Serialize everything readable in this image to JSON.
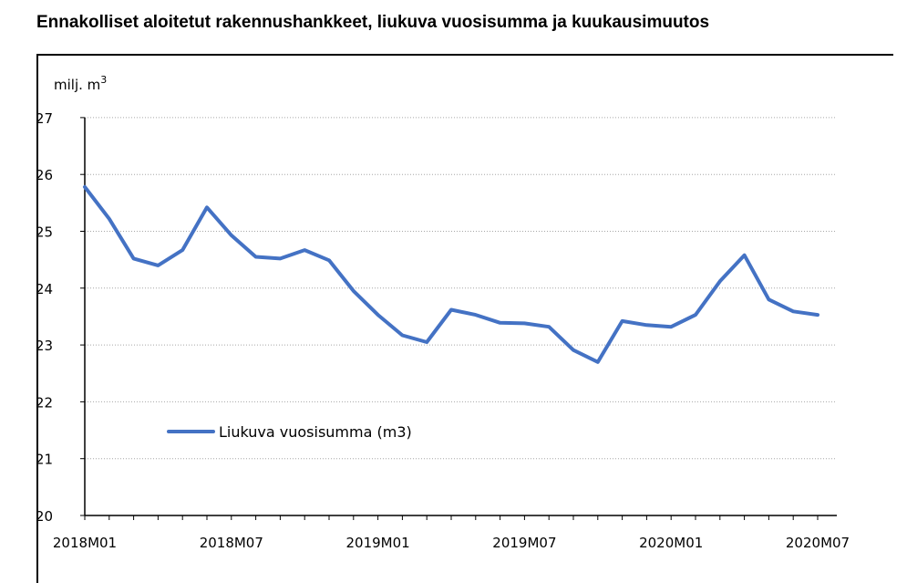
{
  "title": "Ennakolliset aloitetut rakennushankkeet, liukuva vuosisumma ja kuukausimuutos",
  "chart_data": {
    "type": "line",
    "title": "Ennakolliset aloitetut rakennushankkeet, liukuva vuosisumma ja kuukausimuutos",
    "ylabel_base": "milj. m",
    "ylabel_sup": "3",
    "xlabel": "",
    "ylim": [
      20,
      27
    ],
    "yticks": [
      20,
      21,
      22,
      23,
      24,
      25,
      26,
      27
    ],
    "grid": true,
    "legend_placement": "lower-left",
    "categories": [
      "2018M01",
      "2018M02",
      "2018M03",
      "2018M04",
      "2018M05",
      "2018M06",
      "2018M07",
      "2018M08",
      "2018M09",
      "2018M10",
      "2018M11",
      "2018M12",
      "2019M01",
      "2019M02",
      "2019M03",
      "2019M04",
      "2019M05",
      "2019M06",
      "2019M07",
      "2019M08",
      "2019M09",
      "2019M10",
      "2019M11",
      "2019M12",
      "2020M01",
      "2020M02",
      "2020M03",
      "2020M04",
      "2020M05",
      "2020M06",
      "2020M07"
    ],
    "xtick_labels": [
      "2018M01",
      "2018M07",
      "2019M01",
      "2019M07",
      "2020M01",
      "2020M07"
    ],
    "series": [
      {
        "name": "Liukuva vuosisumma (m3)",
        "color": "#4472C4",
        "values": [
          25.78,
          25.22,
          24.52,
          24.4,
          24.67,
          25.42,
          24.93,
          24.55,
          24.52,
          24.67,
          24.49,
          23.95,
          23.53,
          23.17,
          23.05,
          23.62,
          23.53,
          23.39,
          23.38,
          23.32,
          22.91,
          22.7,
          23.42,
          23.35,
          23.32,
          23.53,
          24.12,
          24.58,
          23.8,
          23.59,
          23.53
        ]
      }
    ]
  }
}
